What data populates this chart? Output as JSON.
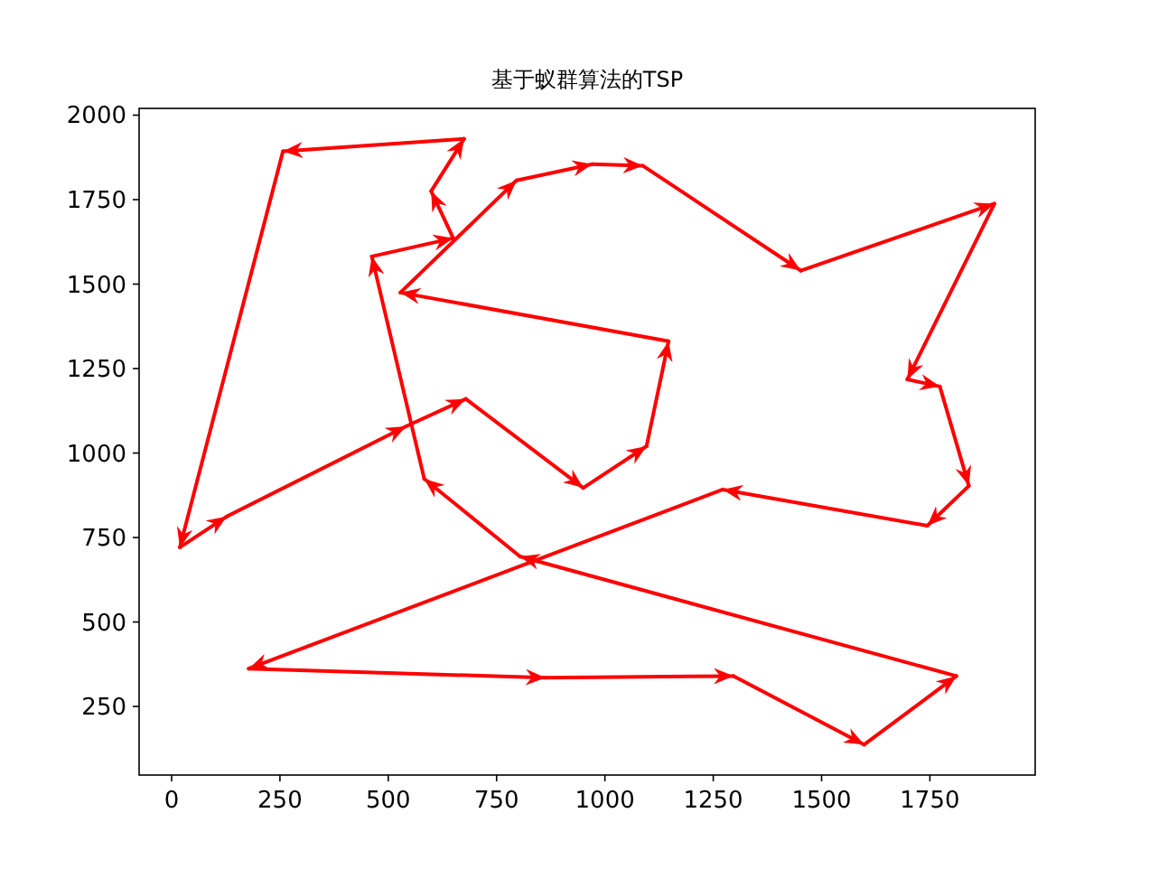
{
  "chart_data": {
    "type": "line",
    "title": "基于蚁群算法的TSP",
    "series": [
      {
        "color": "#ff0000",
        "x": [
          257,
          19
        ],
        "values": [
          1893,
          721
        ]
      },
      {
        "color": "#ff0000",
        "x": [
          19,
          127
        ],
        "values": [
          721,
          812
        ]
      },
      {
        "color": "#ff0000",
        "x": [
          127,
          541
        ],
        "values": [
          812,
          1079
        ]
      },
      {
        "color": "#ff0000",
        "x": [
          541,
          679
        ],
        "values": [
          1079,
          1160
        ]
      },
      {
        "color": "#ff0000",
        "x": [
          679,
          950
        ],
        "values": [
          1160,
          897
        ]
      },
      {
        "color": "#ff0000",
        "x": [
          950,
          1096
        ],
        "values": [
          897,
          1020
        ]
      },
      {
        "color": "#ff0000",
        "x": [
          1096,
          1147
        ],
        "values": [
          1020,
          1331
        ]
      },
      {
        "color": "#ff0000",
        "x": [
          1147,
          528
        ],
        "values": [
          1331,
          1475
        ]
      },
      {
        "color": "#ff0000",
        "x": [
          528,
          796
        ],
        "values": [
          1475,
          1807
        ]
      },
      {
        "color": "#ff0000",
        "x": [
          796,
          971
        ],
        "values": [
          1807,
          1855
        ]
      },
      {
        "color": "#ff0000",
        "x": [
          971,
          1088
        ],
        "values": [
          1855,
          1850
        ]
      },
      {
        "color": "#ff0000",
        "x": [
          1088,
          1452
        ],
        "values": [
          1850,
          1540
        ]
      },
      {
        "color": "#ff0000",
        "x": [
          1452,
          1899
        ],
        "values": [
          1540,
          1738
        ]
      },
      {
        "color": "#ff0000",
        "x": [
          1899,
          1698
        ],
        "values": [
          1738,
          1218
        ]
      },
      {
        "color": "#ff0000",
        "x": [
          1698,
          1773
        ],
        "values": [
          1218,
          1197
        ]
      },
      {
        "color": "#ff0000",
        "x": [
          1773,
          1840
        ],
        "values": [
          1197,
          903
        ]
      },
      {
        "color": "#ff0000",
        "x": [
          1840,
          1744
        ],
        "values": [
          903,
          785
        ]
      },
      {
        "color": "#ff0000",
        "x": [
          1744,
          1272
        ],
        "values": [
          785,
          892
        ]
      },
      {
        "color": "#ff0000",
        "x": [
          1272,
          178
        ],
        "values": [
          892,
          362
        ]
      },
      {
        "color": "#ff0000",
        "x": [
          178,
          863
        ],
        "values": [
          362,
          335
        ]
      },
      {
        "color": "#ff0000",
        "x": [
          863,
          1297
        ],
        "values": [
          335,
          340
        ]
      },
      {
        "color": "#ff0000",
        "x": [
          1297,
          1598
        ],
        "values": [
          340,
          137
        ]
      },
      {
        "color": "#ff0000",
        "x": [
          1598,
          1811
        ],
        "values": [
          137,
          340
        ]
      },
      {
        "color": "#ff0000",
        "x": [
          1811,
          804
        ],
        "values": [
          340,
          694
        ]
      },
      {
        "color": "#ff0000",
        "x": [
          804,
          583
        ],
        "values": [
          694,
          924
        ]
      },
      {
        "color": "#ff0000",
        "x": [
          583,
          462
        ],
        "values": [
          924,
          1582
        ]
      },
      {
        "color": "#ff0000",
        "x": [
          462,
          650
        ],
        "values": [
          1582,
          1636
        ]
      },
      {
        "color": "#ff0000",
        "x": [
          650,
          599
        ],
        "values": [
          1636,
          1775
        ]
      },
      {
        "color": "#ff0000",
        "x": [
          599,
          675
        ],
        "values": [
          1775,
          1930
        ]
      },
      {
        "color": "#ff0000",
        "x": [
          675,
          257
        ],
        "values": [
          1930,
          1893
        ]
      }
    ],
    "line_style": "solid",
    "grid": false,
    "xlim": [
      -75,
      1993
    ],
    "ylim": [
      47,
      2020
    ],
    "xticks": [
      0,
      250,
      500,
      750,
      1000,
      1250,
      1500,
      1750
    ],
    "yticks": [
      250,
      500,
      750,
      1000,
      1250,
      1500,
      1750,
      2000
    ]
  }
}
